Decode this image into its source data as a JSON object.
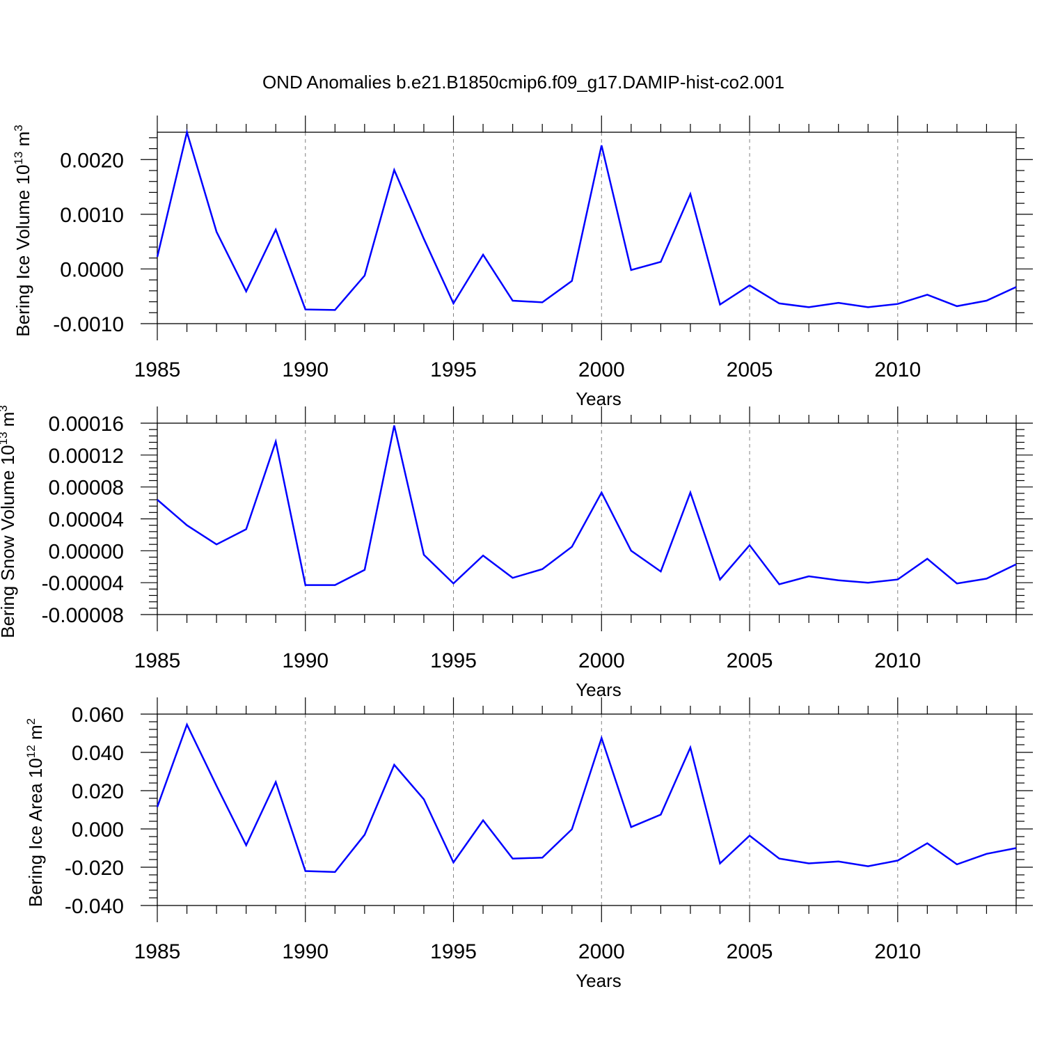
{
  "title": "OND Anomalies b.e21.B1850cmip6.f09_g17.DAMIP-hist-co2.001",
  "colors": {
    "series": "#0000ff",
    "axis": "#000000",
    "grid": "#808080",
    "background": "#ffffff"
  },
  "chart_data": [
    {
      "type": "line",
      "title": "OND Anomalies b.e21.B1850cmip6.f09_g17.DAMIP-hist-co2.001",
      "xlabel": "Years",
      "ylabel": "Bering Ice Volume 10",
      "ylabel_exp": "13",
      "ylabel_unit": " m",
      "ylabel_unit_exp": "3",
      "xlim": [
        1985,
        2014
      ],
      "ylim": [
        -0.001,
        0.0025
      ],
      "xticks": [
        1985,
        1990,
        1995,
        2000,
        2005,
        2010
      ],
      "yticks": [
        -0.001,
        0.0,
        0.001,
        0.002
      ],
      "ytick_labels": [
        "-0.0010",
        "0.0000",
        "0.0010",
        "0.0020"
      ],
      "grid": "vertical dashed at major x ticks",
      "x": [
        1985,
        1986,
        1987,
        1988,
        1989,
        1990,
        1991,
        1992,
        1993,
        1994,
        1995,
        1996,
        1997,
        1998,
        1999,
        2000,
        2001,
        2002,
        2003,
        2004,
        2005,
        2006,
        2007,
        2008,
        2009,
        2010,
        2011,
        2012,
        2013,
        2014
      ],
      "values": [
        0.00022,
        0.0025,
        0.00068,
        -0.00041,
        0.00072,
        -0.00074,
        -0.00075,
        -0.00012,
        0.00181,
        0.00055,
        -0.00063,
        0.00026,
        -0.00058,
        -0.00061,
        -0.00022,
        0.00226,
        -2e-05,
        0.00013,
        0.00137,
        -0.00065,
        -0.0003,
        -0.00063,
        -0.0007,
        -0.00062,
        -0.0007,
        -0.00064,
        -0.00047,
        -0.00068,
        -0.00058,
        -0.00033
      ]
    },
    {
      "type": "line",
      "xlabel": "Years",
      "ylabel": "Bering Snow Volume 10",
      "ylabel_exp": "13",
      "ylabel_unit": " m",
      "ylabel_unit_exp": "3",
      "xlim": [
        1985,
        2014
      ],
      "ylim": [
        -8e-05,
        0.00016
      ],
      "xticks": [
        1985,
        1990,
        1995,
        2000,
        2005,
        2010
      ],
      "yticks": [
        -8e-05,
        -4e-05,
        0.0,
        4e-05,
        8e-05,
        0.00012,
        0.00016
      ],
      "ytick_labels": [
        "-0.00008",
        "-0.00004",
        "0.00000",
        "0.00004",
        "0.00008",
        "0.00012",
        "0.00016"
      ],
      "grid": "vertical dashed at major x ticks",
      "x": [
        1985,
        1986,
        1987,
        1988,
        1989,
        1990,
        1991,
        1992,
        1993,
        1994,
        1995,
        1996,
        1997,
        1998,
        1999,
        2000,
        2001,
        2002,
        2003,
        2004,
        2005,
        2006,
        2007,
        2008,
        2009,
        2010,
        2011,
        2012,
        2013,
        2014
      ],
      "values": [
        6.4e-05,
        3.2e-05,
        8e-06,
        2.7e-05,
        0.000137,
        -4.3e-05,
        -4.3e-05,
        -2.4e-05,
        0.000157,
        -5e-06,
        -4.1e-05,
        -6e-06,
        -3.4e-05,
        -2.3e-05,
        5e-06,
        7.3e-05,
        0.0,
        -2.6e-05,
        7.3e-05,
        -3.6e-05,
        7e-06,
        -4.2e-05,
        -3.2e-05,
        -3.7e-05,
        -4e-05,
        -3.6e-05,
        -1e-05,
        -4.1e-05,
        -3.5e-05,
        -1.7e-05
      ]
    },
    {
      "type": "line",
      "xlabel": "Years",
      "ylabel": "Bering Ice Area 10",
      "ylabel_exp": "12",
      "ylabel_unit": " m",
      "ylabel_unit_exp": "2",
      "xlim": [
        1985,
        2014
      ],
      "ylim": [
        -0.04,
        0.06
      ],
      "xticks": [
        1985,
        1990,
        1995,
        2000,
        2005,
        2010
      ],
      "yticks": [
        -0.04,
        -0.02,
        0.0,
        0.02,
        0.04,
        0.06
      ],
      "ytick_labels": [
        "-0.040",
        "-0.020",
        "0.000",
        "0.020",
        "0.040",
        "0.060"
      ],
      "grid": "vertical dashed at major x ticks",
      "x": [
        1985,
        1986,
        1987,
        1988,
        1989,
        1990,
        1991,
        1992,
        1993,
        1994,
        1995,
        1996,
        1997,
        1998,
        1999,
        2000,
        2001,
        2002,
        2003,
        2004,
        2005,
        2006,
        2007,
        2008,
        2009,
        2010,
        2011,
        2012,
        2013,
        2014
      ],
      "values": [
        0.0115,
        0.0545,
        0.0225,
        -0.0085,
        0.0245,
        -0.022,
        -0.0225,
        -0.003,
        0.0335,
        0.0155,
        -0.0175,
        0.0045,
        -0.0155,
        -0.015,
        -0.0002,
        0.0475,
        0.001,
        0.0075,
        0.0425,
        -0.018,
        -0.0035,
        -0.0155,
        -0.018,
        -0.017,
        -0.0195,
        -0.0165,
        -0.0075,
        -0.0185,
        -0.013,
        -0.01
      ]
    }
  ]
}
